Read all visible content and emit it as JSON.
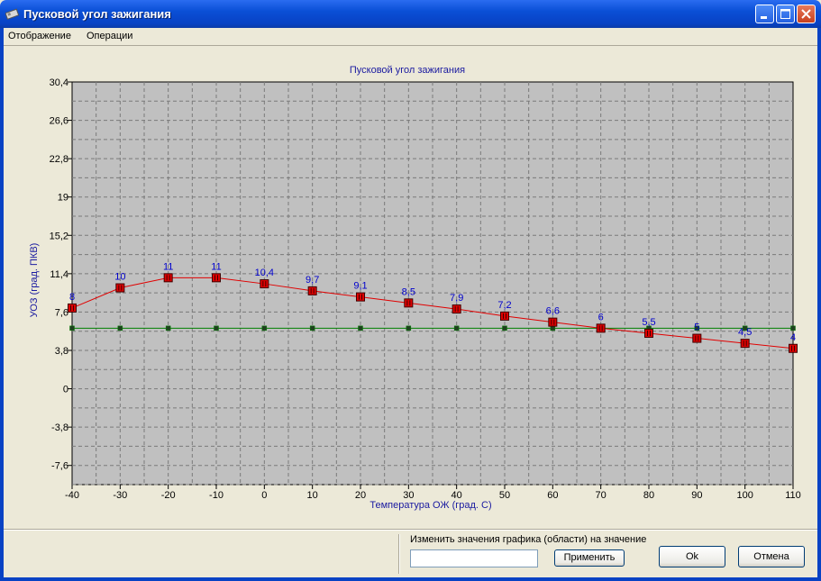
{
  "window": {
    "title": "Пусковой угол зажигания"
  },
  "menu": {
    "items": [
      "Отображение",
      "Операции"
    ]
  },
  "chart_data": {
    "type": "line",
    "title": "Пусковой угол зажигания",
    "xlabel": "Температура ОЖ (град. С)",
    "ylabel": "УОЗ (град. ПКВ)",
    "x": [
      -40,
      -30,
      -20,
      -10,
      0,
      10,
      20,
      30,
      40,
      50,
      60,
      70,
      80,
      90,
      100,
      110
    ],
    "xticks": [
      "-40",
      "-30",
      "-20",
      "-10",
      "0",
      "10",
      "20",
      "30",
      "40",
      "50",
      "60",
      "70",
      "80",
      "90",
      "100",
      "110"
    ],
    "yticks": [
      30.4,
      26.6,
      22.8,
      19,
      15.2,
      11.4,
      7.6,
      3.8,
      0,
      -3.8,
      -7.6
    ],
    "ytick_labels": [
      "30,4",
      "26,6",
      "22,8",
      "19",
      "15,2",
      "11,4",
      "7,6",
      "3,8",
      "0",
      "-3,8",
      "-7,6"
    ],
    "xlim": [
      -40,
      110
    ],
    "ylim": [
      -9.5,
      30.4
    ],
    "grid": true,
    "series": [
      {
        "color": "#e00000",
        "values": [
          8,
          10,
          11,
          11,
          10.4,
          9.7,
          9.1,
          8.5,
          7.9,
          7.2,
          6.6,
          6,
          5.5,
          5,
          4.5,
          4
        ],
        "labels": [
          "8",
          "10",
          "11",
          "11",
          "10,4",
          "9,7",
          "9,1",
          "8,5",
          "7,9",
          "7,2",
          "6,6",
          "6",
          "5,5",
          "5",
          "4,5",
          "4"
        ]
      },
      {
        "color": "#008000",
        "values": [
          6,
          6,
          6,
          6,
          6,
          6,
          6,
          6,
          6,
          6,
          6,
          6,
          6,
          6,
          6,
          6
        ]
      }
    ]
  },
  "bottom": {
    "change_label": "Изменить значения графика (области) на значение",
    "value_input": "",
    "apply_button": "Применить",
    "ok_button": "Ok",
    "cancel_button": "Отмена"
  }
}
